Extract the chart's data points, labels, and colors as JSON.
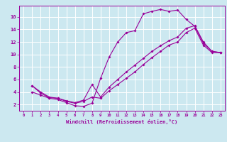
{
  "xlabel": "Windchill (Refroidissement éolien,°C)",
  "bg_color": "#cce8f0",
  "line_color": "#990099",
  "grid_color": "#ffffff",
  "xlim": [
    -0.5,
    23.5
  ],
  "ylim": [
    1.0,
    17.8
  ],
  "xticks": [
    0,
    1,
    2,
    3,
    4,
    5,
    6,
    7,
    8,
    9,
    10,
    11,
    12,
    13,
    14,
    15,
    16,
    17,
    18,
    19,
    20,
    21,
    22,
    23
  ],
  "yticks": [
    2,
    4,
    6,
    8,
    10,
    12,
    14,
    16
  ],
  "curve1_x": [
    1,
    2,
    3,
    4,
    5,
    6,
    7,
    8,
    9,
    10,
    11,
    12,
    13,
    14,
    15,
    16,
    17,
    18,
    19,
    20,
    21,
    22,
    23
  ],
  "curve1_y": [
    4.0,
    3.5,
    3.0,
    2.8,
    2.3,
    1.8,
    1.7,
    2.2,
    6.2,
    9.6,
    12.0,
    13.5,
    13.8,
    16.5,
    16.9,
    17.2,
    16.9,
    17.1,
    15.6,
    14.5,
    11.8,
    10.5,
    10.3
  ],
  "curve2_x": [
    1,
    2,
    3,
    4,
    5,
    6,
    7,
    8,
    9,
    10,
    11,
    12,
    13,
    14,
    15,
    16,
    17,
    18,
    19,
    20,
    21,
    22,
    23
  ],
  "curve2_y": [
    5.0,
    3.8,
    3.1,
    3.0,
    2.5,
    2.2,
    2.5,
    3.2,
    3.0,
    4.2,
    5.2,
    6.2,
    7.2,
    8.4,
    9.5,
    10.5,
    11.5,
    12.0,
    13.5,
    14.2,
    11.5,
    10.3,
    10.3
  ],
  "curve3_x": [
    1,
    2,
    3,
    4,
    5,
    6,
    7,
    8,
    9,
    10,
    11,
    12,
    13,
    14,
    15,
    16,
    17,
    18,
    19,
    20,
    21,
    22,
    23
  ],
  "curve3_y": [
    5.0,
    4.0,
    3.2,
    3.0,
    2.6,
    2.3,
    2.7,
    5.2,
    3.2,
    4.8,
    6.0,
    7.2,
    8.3,
    9.4,
    10.5,
    11.4,
    12.2,
    12.8,
    14.2,
    14.6,
    12.0,
    10.5,
    10.3
  ]
}
